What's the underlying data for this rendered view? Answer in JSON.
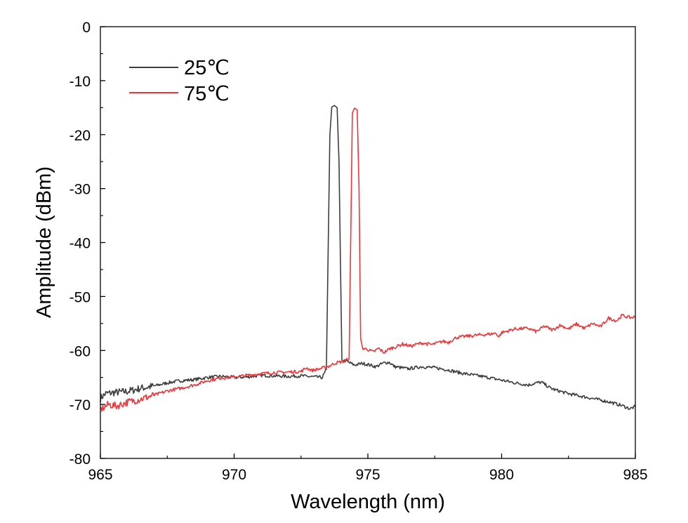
{
  "chart_data": {
    "type": "line",
    "xlabel": "Wavelength (nm)",
    "ylabel": "Amplitude (dBm)",
    "xlim": [
      965,
      985
    ],
    "ylim": [
      -80,
      0
    ],
    "xticks": [
      965,
      970,
      975,
      980,
      985
    ],
    "yticks": [
      0,
      -10,
      -20,
      -30,
      -40,
      -50,
      -60,
      -70,
      -80
    ],
    "legend_position": "top-left",
    "grid": false,
    "series": [
      {
        "name": "25℃",
        "color": "#3d3d3d",
        "points": [
          [
            965.0,
            -68.8
          ],
          [
            965.2,
            -68.0
          ],
          [
            965.5,
            -67.8
          ],
          [
            966.0,
            -67.6
          ],
          [
            966.5,
            -67.0
          ],
          [
            967.0,
            -66.6
          ],
          [
            967.5,
            -66.0
          ],
          [
            968.0,
            -65.6
          ],
          [
            968.5,
            -65.4
          ],
          [
            969.0,
            -65.0
          ],
          [
            969.5,
            -64.8
          ],
          [
            970.0,
            -65.0
          ],
          [
            970.5,
            -64.9
          ],
          [
            971.0,
            -64.6
          ],
          [
            971.5,
            -64.7
          ],
          [
            972.0,
            -64.8
          ],
          [
            972.5,
            -64.7
          ],
          [
            973.0,
            -64.9
          ],
          [
            973.3,
            -65.0
          ],
          [
            973.45,
            -63.5
          ],
          [
            973.52,
            -40.0
          ],
          [
            973.58,
            -20.0
          ],
          [
            973.65,
            -14.9
          ],
          [
            973.75,
            -14.6
          ],
          [
            973.85,
            -15.0
          ],
          [
            973.92,
            -25.0
          ],
          [
            973.98,
            -45.0
          ],
          [
            974.03,
            -61.8
          ],
          [
            974.2,
            -62.0
          ],
          [
            974.5,
            -62.7
          ],
          [
            974.8,
            -62.4
          ],
          [
            975.0,
            -62.6
          ],
          [
            975.3,
            -63.0
          ],
          [
            975.6,
            -62.3
          ],
          [
            975.8,
            -62.2
          ],
          [
            976.0,
            -63.0
          ],
          [
            976.5,
            -63.4
          ],
          [
            977.0,
            -63.0
          ],
          [
            977.5,
            -63.2
          ],
          [
            978.0,
            -63.6
          ],
          [
            978.5,
            -64.2
          ],
          [
            979.0,
            -64.6
          ],
          [
            979.5,
            -65.0
          ],
          [
            980.0,
            -65.5
          ],
          [
            980.5,
            -66.0
          ],
          [
            981.0,
            -66.4
          ],
          [
            981.3,
            -66.0
          ],
          [
            981.5,
            -65.9
          ],
          [
            981.8,
            -66.9
          ],
          [
            982.0,
            -67.3
          ],
          [
            982.5,
            -68.0
          ],
          [
            983.0,
            -68.5
          ],
          [
            983.5,
            -69.0
          ],
          [
            984.0,
            -69.5
          ],
          [
            984.5,
            -70.2
          ],
          [
            984.8,
            -70.8
          ],
          [
            985.0,
            -70.4
          ]
        ]
      },
      {
        "name": "75℃",
        "color": "#e8383b",
        "points": [
          [
            965.0,
            -71.0
          ],
          [
            965.3,
            -70.0
          ],
          [
            965.6,
            -70.3
          ],
          [
            966.0,
            -69.6
          ],
          [
            966.5,
            -69.0
          ],
          [
            967.0,
            -68.3
          ],
          [
            967.5,
            -67.5
          ],
          [
            968.0,
            -67.0
          ],
          [
            968.5,
            -66.4
          ],
          [
            969.0,
            -65.6
          ],
          [
            969.5,
            -65.1
          ],
          [
            970.0,
            -64.9
          ],
          [
            970.5,
            -64.6
          ],
          [
            971.0,
            -64.3
          ],
          [
            971.5,
            -64.1
          ],
          [
            972.0,
            -64.0
          ],
          [
            972.5,
            -63.9
          ],
          [
            972.7,
            -63.2
          ],
          [
            972.9,
            -63.7
          ],
          [
            973.2,
            -63.4
          ],
          [
            973.5,
            -63.0
          ],
          [
            973.8,
            -62.3
          ],
          [
            974.1,
            -62.0
          ],
          [
            974.3,
            -61.5
          ],
          [
            974.37,
            -35.0
          ],
          [
            974.42,
            -16.0
          ],
          [
            974.5,
            -15.1
          ],
          [
            974.6,
            -15.4
          ],
          [
            974.67,
            -30.0
          ],
          [
            974.73,
            -58.0
          ],
          [
            974.8,
            -59.6
          ],
          [
            975.0,
            -59.8
          ],
          [
            975.2,
            -60.3
          ],
          [
            975.4,
            -59.6
          ],
          [
            975.6,
            -60.4
          ],
          [
            975.8,
            -59.7
          ],
          [
            976.0,
            -59.4
          ],
          [
            976.3,
            -58.8
          ],
          [
            976.6,
            -59.2
          ],
          [
            977.0,
            -58.6
          ],
          [
            977.4,
            -58.9
          ],
          [
            977.8,
            -58.3
          ],
          [
            978.0,
            -58.5
          ],
          [
            978.3,
            -57.6
          ],
          [
            978.6,
            -57.4
          ],
          [
            979.0,
            -57.2
          ],
          [
            979.5,
            -57.0
          ],
          [
            979.8,
            -56.8
          ],
          [
            979.9,
            -57.5
          ],
          [
            980.0,
            -56.7
          ],
          [
            980.5,
            -56.0
          ],
          [
            981.0,
            -55.9
          ],
          [
            981.3,
            -56.5
          ],
          [
            981.6,
            -55.5
          ],
          [
            981.9,
            -56.2
          ],
          [
            982.2,
            -55.3
          ],
          [
            982.5,
            -56.0
          ],
          [
            982.8,
            -55.1
          ],
          [
            983.1,
            -55.9
          ],
          [
            983.4,
            -55.0
          ],
          [
            983.7,
            -55.6
          ],
          [
            984.0,
            -54.0
          ],
          [
            984.3,
            -54.5
          ],
          [
            984.5,
            -53.5
          ],
          [
            984.8,
            -53.9
          ],
          [
            985.0,
            -53.8
          ]
        ]
      }
    ]
  }
}
